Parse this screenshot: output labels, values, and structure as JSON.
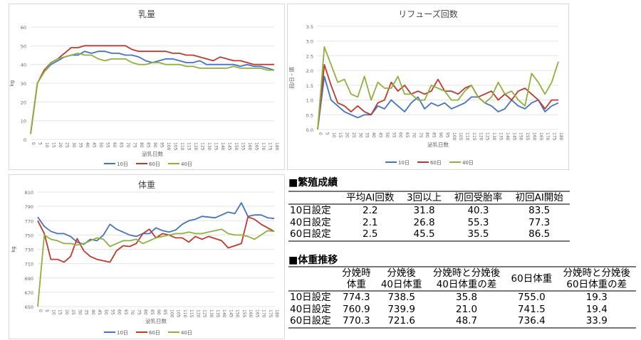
{
  "chart_data": [
    {
      "id": "milk",
      "type": "line",
      "title": "乳量",
      "xlabel": "泌乳日数",
      "ylabel": "kg",
      "ylim": [
        0,
        60
      ],
      "yticks": [
        0,
        10,
        20,
        30,
        40,
        50,
        60
      ],
      "x": [
        0,
        5,
        10,
        15,
        20,
        25,
        30,
        35,
        40,
        45,
        50,
        55,
        60,
        65,
        70,
        75,
        80,
        85,
        90,
        95,
        100,
        105,
        110,
        115,
        120,
        125,
        130,
        135,
        140,
        145,
        150,
        155,
        160,
        165,
        170,
        175,
        180
      ],
      "series": [
        {
          "name": "10日",
          "color": "#4472c4",
          "values": [
            3,
            30,
            36,
            40,
            42,
            44,
            45,
            45,
            47,
            46,
            47,
            47,
            46,
            46,
            45,
            45,
            44,
            42,
            41,
            42,
            43,
            43,
            42,
            41,
            41,
            42,
            40,
            40,
            40,
            40,
            40,
            39,
            40,
            39,
            39,
            38,
            37
          ]
        },
        {
          "name": "60日",
          "color": "#c0392b",
          "values": [
            3,
            30,
            37,
            41,
            43,
            46,
            49,
            49,
            50,
            50,
            50,
            50,
            50,
            50,
            50,
            48,
            47,
            47,
            47,
            47,
            47,
            46,
            46,
            45,
            45,
            44,
            43,
            42,
            44,
            43,
            42,
            42,
            41,
            40,
            40,
            40,
            40
          ]
        },
        {
          "name": "40日",
          "color": "#8db13d",
          "values": [
            3,
            30,
            36,
            41,
            43,
            44,
            45,
            46,
            45,
            45,
            43,
            42,
            43,
            43,
            43,
            41,
            40,
            40,
            41,
            41,
            40,
            40,
            40,
            39,
            39,
            38,
            38,
            38,
            38,
            38,
            39,
            38,
            38,
            38,
            38,
            37,
            37
          ]
        }
      ]
    },
    {
      "id": "refusal",
      "type": "line",
      "title": "リフューズ回数",
      "xlabel": "泌乳日数",
      "ylabel": "回/日・頭",
      "ylim": [
        0,
        3.5
      ],
      "yticks": [
        "0.0",
        "0.5",
        "1.0",
        "1.5",
        "2.0",
        "2.5",
        "3.0",
        "3.5"
      ],
      "x": [
        0,
        5,
        10,
        15,
        20,
        25,
        30,
        35,
        40,
        45,
        50,
        55,
        60,
        65,
        70,
        75,
        80,
        85,
        90,
        95,
        100,
        105,
        110,
        115,
        120,
        125,
        130,
        135,
        140,
        145,
        150,
        155,
        160,
        165,
        170,
        175,
        180
      ],
      "series": [
        {
          "name": "10日",
          "color": "#4472c4",
          "values": [
            0,
            1.8,
            1.0,
            0.8,
            0.6,
            0.5,
            0.4,
            0.5,
            0.5,
            0.8,
            0.7,
            1.0,
            0.8,
            0.6,
            0.9,
            1.1,
            0.7,
            0.9,
            0.8,
            0.9,
            0.7,
            0.8,
            0.9,
            1.1,
            1.1,
            0.9,
            0.8,
            0.6,
            0.7,
            1.0,
            0.8,
            0.7,
            0.9,
            1.0,
            0.6,
            0.8,
            0.9
          ]
        },
        {
          "name": "60日",
          "color": "#c0392b",
          "values": [
            0,
            2.2,
            1.5,
            0.9,
            0.8,
            0.6,
            0.8,
            0.6,
            0.5,
            0.9,
            1.0,
            1.6,
            1.3,
            1.5,
            1.2,
            1.3,
            1.2,
            1.3,
            1.7,
            1.3,
            1.3,
            1.2,
            1.4,
            1.5,
            1.1,
            1.2,
            1.3,
            1.0,
            1.2,
            1.0,
            1.3,
            1.4,
            1.2,
            1.0,
            0.7,
            1.0,
            1.0
          ]
        },
        {
          "name": "40日",
          "color": "#8db13d",
          "values": [
            0,
            2.8,
            2.2,
            1.6,
            1.7,
            1.2,
            1.1,
            1.8,
            1.0,
            1.6,
            1.4,
            1.4,
            1.8,
            1.2,
            1.2,
            1.0,
            1.0,
            1.5,
            1.4,
            1.3,
            1.0,
            1.0,
            1.3,
            1.5,
            1.1,
            0.9,
            1.1,
            1.6,
            1.2,
            1.3,
            1.0,
            0.8,
            1.9,
            1.6,
            1.2,
            1.6,
            2.3
          ]
        }
      ]
    },
    {
      "id": "weight",
      "type": "line",
      "title": "体重",
      "xlabel": "泌乳日数",
      "ylabel": "kg",
      "ylim": [
        650,
        810
      ],
      "yticks": [
        650,
        670,
        690,
        710,
        730,
        750,
        770,
        790,
        810
      ],
      "x": [
        0,
        5,
        10,
        15,
        20,
        25,
        30,
        35,
        40,
        45,
        50,
        55,
        60,
        65,
        70,
        75,
        80,
        85,
        90,
        95,
        100,
        105,
        110,
        115,
        120,
        125,
        130,
        135,
        140,
        145,
        150,
        155,
        160,
        165,
        170,
        175,
        180
      ],
      "series": [
        {
          "name": "10日",
          "color": "#4472c4",
          "values": [
            775,
            762,
            755,
            752,
            752,
            748,
            740,
            737,
            744,
            742,
            750,
            765,
            758,
            754,
            750,
            748,
            752,
            752,
            760,
            756,
            754,
            757,
            765,
            770,
            772,
            776,
            775,
            774,
            778,
            782,
            780,
            795,
            776,
            778,
            778,
            774,
            773
          ]
        },
        {
          "name": "60日",
          "color": "#c0392b",
          "values": [
            770,
            752,
            716,
            716,
            712,
            720,
            745,
            728,
            720,
            716,
            714,
            712,
            728,
            735,
            734,
            738,
            752,
            758,
            746,
            752,
            750,
            746,
            746,
            740,
            748,
            744,
            748,
            745,
            742,
            732,
            735,
            738,
            775,
            772,
            765,
            760,
            755
          ]
        },
        {
          "name": "40日",
          "color": "#8db13d",
          "values": [
            650,
            750,
            744,
            742,
            738,
            738,
            736,
            738,
            742,
            746,
            744,
            734,
            738,
            742,
            742,
            744,
            738,
            742,
            746,
            748,
            750,
            752,
            752,
            754,
            752,
            752,
            754,
            756,
            758,
            752,
            750,
            750,
            748,
            744,
            750,
            756,
            755
          ]
        }
      ]
    }
  ],
  "breeding": {
    "title": "■繁殖成績",
    "headers": [
      "",
      "平均AI回数",
      "3回以上",
      "初回受胎率",
      "初回AI開始"
    ],
    "rows": [
      [
        "10日設定",
        "2.2",
        "31.8",
        "40.3",
        "83.5"
      ],
      [
        "40日設定",
        "2.1",
        "26.8",
        "55.3",
        "77.3"
      ],
      [
        "60日設定",
        "2.5",
        "45.5",
        "35.5",
        "86.5"
      ]
    ]
  },
  "weight_table": {
    "title": "■体重推移",
    "headers": [
      [
        "",
        ""
      ],
      [
        "分娩時",
        "体重"
      ],
      [
        "分娩後",
        "40日体重"
      ],
      [
        "分娩時と分娩後",
        "40日体重の差"
      ],
      [
        "60日体重",
        ""
      ],
      [
        "分娩時と分娩後",
        "60日体重の差"
      ]
    ],
    "rows": [
      [
        "10日設定",
        "774.3",
        "738.5",
        "35.8",
        "755.0",
        "19.3"
      ],
      [
        "40日設定",
        "760.9",
        "739.9",
        "21.0",
        "741.5",
        "19.4"
      ],
      [
        "60日設定",
        "770.3",
        "721.6",
        "48.7",
        "736.4",
        "33.9"
      ]
    ]
  }
}
